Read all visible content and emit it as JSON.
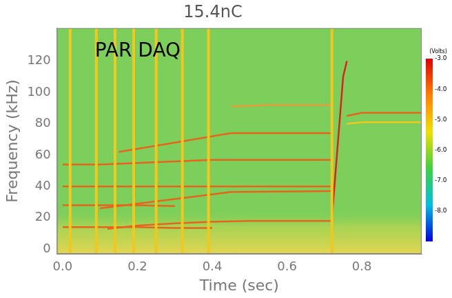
{
  "chart_data": {
    "type": "line",
    "title": "15.4nC",
    "x_label": "Time (sec)",
    "y_label": "Frequency (kHz)",
    "annotation": "PAR DAQ",
    "xlim": [
      -0.015,
      0.96
    ],
    "xticks": [
      {
        "value": 0,
        "label": "0.0"
      },
      {
        "value": 0.2,
        "label": "0.2"
      },
      {
        "value": 0.4,
        "label": "0.4"
      },
      {
        "value": 0.6,
        "label": "0.6"
      },
      {
        "value": 0.8,
        "label": "0.8"
      }
    ],
    "ylim": [
      -3,
      141
    ],
    "yticks": [
      0,
      20,
      40,
      60,
      80,
      100,
      120
    ],
    "grid": false,
    "colorbar": {
      "title": "(Volts)",
      "range": [
        -9,
        -3
      ],
      "ticks": [
        {
          "value": -3,
          "label": "-3.0"
        },
        {
          "value": -4,
          "label": "-4.0"
        },
        {
          "value": -5,
          "label": "-5.0"
        },
        {
          "value": -6,
          "label": "-6.0"
        },
        {
          "value": -7,
          "label": "-7.0"
        },
        {
          "value": -8,
          "label": "-8.0"
        }
      ]
    },
    "series": [
      {
        "color": "#f2c81e",
        "x": [
          0.02,
          0.02,
          0.02,
          0.09,
          0.09,
          0.09,
          0.14,
          0.14,
          0.14,
          0.19,
          0.19,
          0.19,
          0.25,
          0.25,
          0.25,
          0.32,
          0.32,
          0.32,
          0.39,
          0.39,
          0.39,
          0.72,
          0.72,
          0.72
        ],
        "values": [
          -3,
          141,
          null,
          -3,
          141,
          null,
          -3,
          141,
          null,
          -3,
          141,
          null,
          -3,
          141,
          null,
          -3,
          141,
          null,
          -3,
          141,
          null,
          -3,
          141,
          null
        ]
      },
      {
        "color": "#e8641c",
        "x": [
          0,
          0.1,
          0.2,
          0.3,
          0.4
        ],
        "values": [
          14,
          14,
          14,
          13.5,
          13.5
        ]
      },
      {
        "color": "#e8641c",
        "x": [
          0.12,
          0.2,
          0.3,
          0.4,
          0.5,
          0.72
        ],
        "values": [
          13,
          15,
          16.5,
          17.5,
          18,
          18
        ]
      },
      {
        "color": "#e8641c",
        "x": [
          0,
          0.1,
          0.2,
          0.3
        ],
        "values": [
          28,
          28,
          28,
          27.5
        ]
      },
      {
        "color": "#e8641c",
        "x": [
          0.1,
          0.2,
          0.3,
          0.4,
          0.45,
          0.72
        ],
        "values": [
          26,
          29,
          32,
          35,
          36.5,
          37
        ]
      },
      {
        "color": "#e8641c",
        "x": [
          0,
          0.2,
          0.4,
          0.72
        ],
        "values": [
          40,
          40,
          40,
          40
        ]
      },
      {
        "color": "#e8641c",
        "x": [
          0,
          0.1,
          0.2,
          0.3,
          0.4,
          0.45,
          0.72
        ],
        "values": [
          54,
          54,
          55,
          56,
          57,
          57,
          57
        ]
      },
      {
        "color": "#e8641c",
        "x": [
          0.15,
          0.2,
          0.3,
          0.4,
          0.45,
          0.72
        ],
        "values": [
          62,
          64,
          68,
          72,
          74,
          74
        ]
      },
      {
        "color": "#e89a3c",
        "x": [
          0.45,
          0.55,
          0.72
        ],
        "values": [
          91,
          92,
          92
        ]
      },
      {
        "color": "#e0201c",
        "x": [
          0.72,
          0.73,
          0.74,
          0.75,
          0.76
        ],
        "values": [
          20,
          50,
          80,
          110,
          120
        ]
      },
      {
        "color": "#e8641c",
        "x": [
          0.76,
          0.8,
          0.96
        ],
        "values": [
          85,
          87,
          87
        ]
      },
      {
        "color": "#f2c81e",
        "x": [
          0.76,
          0.8,
          0.96
        ],
        "values": [
          80,
          81,
          81
        ]
      }
    ]
  }
}
